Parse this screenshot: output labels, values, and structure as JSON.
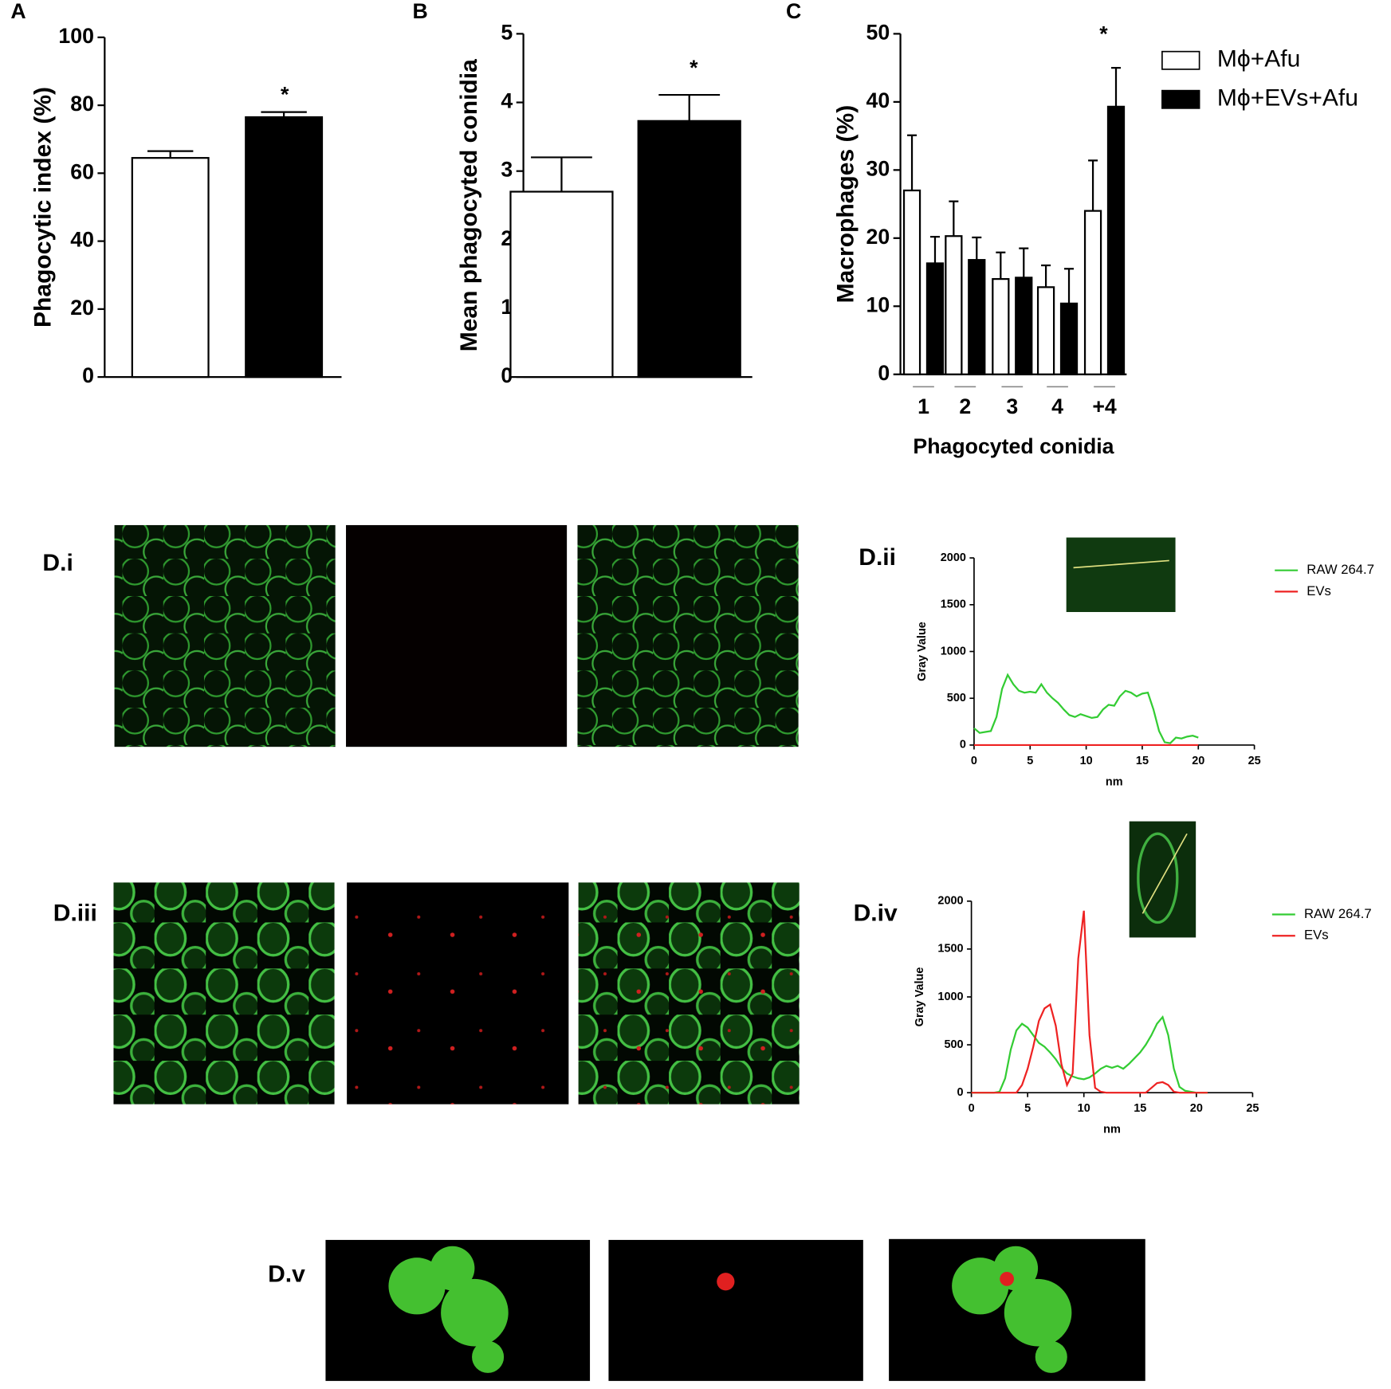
{
  "chart_data": [
    {
      "type": "bar",
      "panel": "A",
      "ylabel": "Phagocytic index (%)",
      "categories": [
        null
      ],
      "ylim": [
        0,
        100
      ],
      "yticks": [
        0,
        20,
        40,
        60,
        80,
        100
      ],
      "series": [
        {
          "color": "#ffffff",
          "values": [
            64.5
          ],
          "errors": [
            2
          ]
        },
        {
          "color": "#000000",
          "values": [
            76.5
          ],
          "errors": [
            1.5
          ]
        }
      ],
      "annotations": [
        "*"
      ]
    },
    {
      "type": "bar",
      "panel": "B",
      "ylabel": "Mean phagocyted conidia",
      "categories": [
        null
      ],
      "ylim": [
        0,
        5
      ],
      "yticks": [
        0,
        1,
        2,
        3,
        4,
        5
      ],
      "series": [
        {
          "color": "#ffffff",
          "values": [
            2.7
          ],
          "errors": [
            0.5
          ]
        },
        {
          "color": "#000000",
          "values": [
            3.73
          ],
          "errors": [
            0.38
          ]
        }
      ],
      "annotations": [
        "*"
      ]
    },
    {
      "type": "bar",
      "panel": "C",
      "ylabel": "Macrophages (%)",
      "xlabel": "Phagocyted conidia",
      "categories": [
        "1",
        "2",
        "3",
        "4",
        "+4"
      ],
      "ylim": [
        0,
        50
      ],
      "yticks": [
        0,
        10,
        20,
        30,
        40,
        50
      ],
      "series": [
        {
          "name": "Mϕ+Afu",
          "color": "#ffffff",
          "values": [
            27,
            20.3,
            14,
            12.8,
            24
          ],
          "errors": [
            8.1,
            5.1,
            3.9,
            3.2,
            7.4
          ]
        },
        {
          "name": "Mϕ+EVs+Afu",
          "color": "#000000",
          "values": [
            16.3,
            16.8,
            14.2,
            10.4,
            39.3
          ],
          "errors": [
            3.9,
            3.3,
            4.3,
            5.1,
            5.7
          ]
        }
      ],
      "annotations": [
        "*"
      ]
    },
    {
      "type": "line",
      "panel": "D.ii",
      "ylabel": "Gray Value",
      "xlabel": "nm",
      "xlim": [
        0,
        25
      ],
      "xticks": [
        0,
        5,
        10,
        15,
        20,
        25
      ],
      "ylim": [
        0,
        2000
      ],
      "yticks": [
        0,
        500,
        1000,
        1500,
        2000
      ],
      "x": [
        0,
        0.5,
        1,
        1.5,
        2,
        2.5,
        3,
        3.5,
        4,
        4.5,
        5,
        5.5,
        6,
        6.5,
        7,
        7.5,
        8,
        8.5,
        9,
        9.5,
        10,
        10.5,
        11,
        11.5,
        12,
        12.5,
        13,
        13.5,
        14,
        14.5,
        15,
        15.5,
        16,
        16.5,
        17,
        17.5,
        18,
        18.5,
        19,
        19.5,
        20
      ],
      "series": [
        {
          "name": "RAW 264.7",
          "color": "#33cc33",
          "values": [
            180,
            130,
            140,
            150,
            300,
            600,
            750,
            650,
            580,
            560,
            570,
            560,
            650,
            560,
            500,
            450,
            380,
            320,
            300,
            330,
            310,
            290,
            300,
            380,
            430,
            420,
            520,
            580,
            560,
            520,
            550,
            560,
            380,
            150,
            30,
            20,
            80,
            70,
            90,
            100,
            80
          ]
        },
        {
          "name": "EVs",
          "color": "#ee2222",
          "values": [
            0,
            0,
            0,
            0,
            0,
            0,
            0,
            0,
            0,
            0,
            0,
            0,
            0,
            0,
            0,
            0,
            0,
            0,
            0,
            0,
            0,
            0,
            0,
            0,
            0,
            0,
            0,
            0,
            0,
            0,
            0,
            0,
            0,
            0,
            0,
            0,
            0,
            0,
            0,
            0,
            0
          ]
        }
      ]
    },
    {
      "type": "line",
      "panel": "D.iv",
      "ylabel": "Gray Value",
      "xlabel": "nm",
      "xlim": [
        0,
        25
      ],
      "xticks": [
        0,
        5,
        10,
        15,
        20,
        25
      ],
      "ylim": [
        0,
        2000
      ],
      "yticks": [
        0,
        500,
        1000,
        1500,
        2000
      ],
      "x": [
        0,
        0.5,
        1,
        1.5,
        2,
        2.5,
        3,
        3.5,
        4,
        4.5,
        5,
        5.5,
        6,
        6.5,
        7,
        7.5,
        8,
        8.5,
        9,
        9.5,
        10,
        10.5,
        11,
        11.5,
        12,
        12.5,
        13,
        13.5,
        14,
        14.5,
        15,
        15.5,
        16,
        16.5,
        17,
        17.5,
        18,
        18.5,
        19,
        19.5,
        20,
        20.5,
        21
      ],
      "series": [
        {
          "name": "RAW 264.7",
          "color": "#33cc33",
          "values": [
            0,
            0,
            0,
            0,
            0,
            10,
            150,
            450,
            650,
            720,
            680,
            600,
            520,
            480,
            420,
            350,
            260,
            200,
            170,
            150,
            140,
            160,
            200,
            250,
            280,
            260,
            280,
            250,
            300,
            360,
            420,
            500,
            600,
            720,
            790,
            600,
            250,
            60,
            20,
            10,
            0,
            0,
            0
          ]
        },
        {
          "name": "EVs",
          "color": "#ee2222",
          "values": [
            0,
            0,
            0,
            0,
            0,
            0,
            0,
            0,
            0,
            80,
            250,
            480,
            750,
            880,
            920,
            700,
            300,
            80,
            200,
            1400,
            1900,
            600,
            50,
            10,
            0,
            0,
            0,
            0,
            0,
            0,
            0,
            0,
            50,
            100,
            110,
            80,
            10,
            0,
            0,
            0,
            0,
            0,
            0
          ]
        }
      ]
    }
  ],
  "figures": [
    {
      "label": "D.i"
    },
    {
      "label": "D.iii"
    },
    {
      "label": "D.v"
    }
  ]
}
